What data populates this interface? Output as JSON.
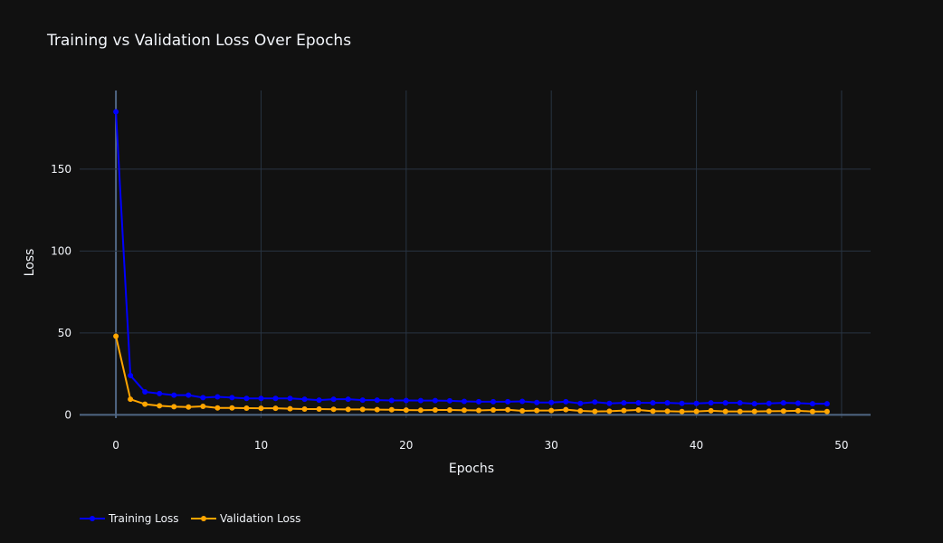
{
  "chart_data": {
    "type": "line",
    "title": "Training vs Validation Loss Over Epochs",
    "xlabel": "Epochs",
    "ylabel": "Loss",
    "xlim": [
      -2.5,
      52
    ],
    "ylim": [
      -2,
      198
    ],
    "x_ticks": [
      0,
      10,
      20,
      30,
      40,
      50
    ],
    "y_ticks": [
      0,
      50,
      100,
      150
    ],
    "grid": true,
    "legend_position": "bottom-left, horizontal",
    "x": [
      0,
      1,
      2,
      3,
      4,
      5,
      6,
      7,
      8,
      9,
      10,
      11,
      12,
      13,
      14,
      15,
      16,
      17,
      18,
      19,
      20,
      21,
      22,
      23,
      24,
      25,
      26,
      27,
      28,
      29,
      30,
      31,
      32,
      33,
      34,
      35,
      36,
      37,
      38,
      39,
      40,
      41,
      42,
      43,
      44,
      45,
      46,
      47,
      48,
      49
    ],
    "series": [
      {
        "name": "Training Loss",
        "color": "#0000ff",
        "values": [
          185,
          24,
          14,
          13,
          12,
          12,
          10.5,
          11,
          10.5,
          10,
          10,
          10,
          10,
          9.5,
          9,
          9.5,
          9.5,
          9,
          9,
          8.8,
          8.8,
          8.7,
          8.7,
          8.6,
          8.2,
          8,
          8,
          8,
          8.2,
          7.5,
          7.5,
          8,
          7,
          7.8,
          7,
          7.3,
          7.3,
          7.3,
          7.3,
          7,
          7,
          7.3,
          7.3,
          7.3,
          6.8,
          7,
          7.3,
          7.1,
          6.8,
          6.8
        ]
      },
      {
        "name": "Validation Loss",
        "color": "#ffa500",
        "values": [
          48,
          9.5,
          6.5,
          5.5,
          5,
          4.8,
          5.2,
          4.2,
          4.2,
          4.1,
          4,
          4,
          3.7,
          3.5,
          3.5,
          3.4,
          3.3,
          3.3,
          3.2,
          3.1,
          2.9,
          2.8,
          3,
          3,
          2.8,
          2.7,
          3,
          3.1,
          2.4,
          2.6,
          2.6,
          3.2,
          2.4,
          2.1,
          2.2,
          2.6,
          3,
          2.2,
          2.2,
          2,
          2.1,
          2.5,
          2.1,
          2.1,
          2.1,
          2.2,
          2.3,
          2.5,
          2,
          2
        ]
      }
    ]
  },
  "colors": {
    "background": "#111111",
    "plot_background": "#111111",
    "grid": "#283442",
    "zero_line": "#506784",
    "text": "#f2f5fa"
  }
}
